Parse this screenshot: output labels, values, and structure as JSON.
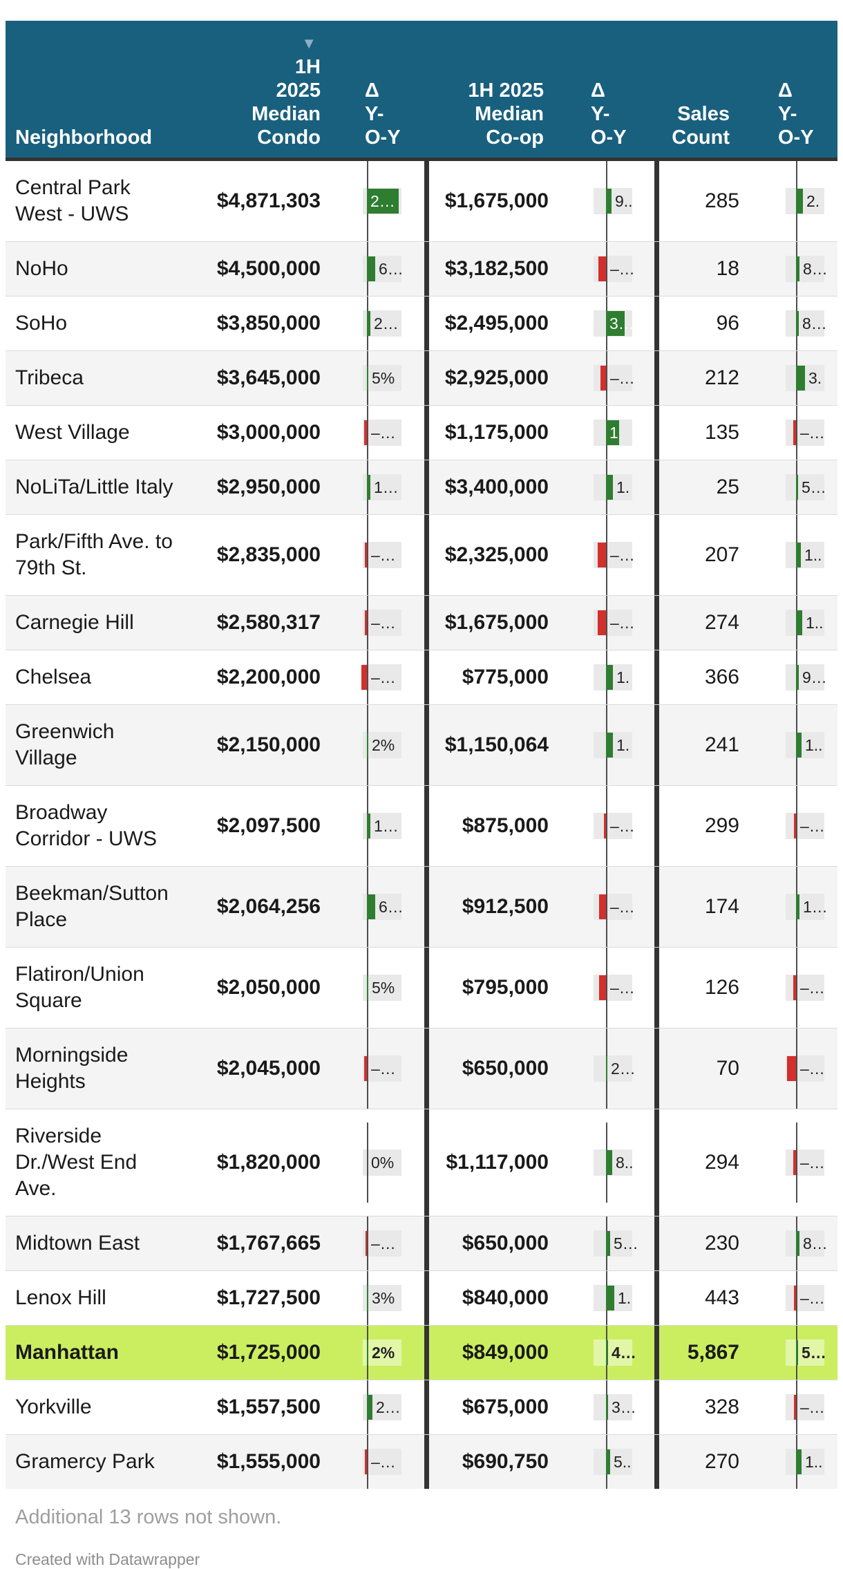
{
  "colors": {
    "header_bg": "#19607E",
    "divider": "#333333",
    "alt_row": "#F4F4F4",
    "highlight": "#CBEE61",
    "positive": "#2E7D30",
    "negative": "#D2302C",
    "label_box": "#E9E9E9",
    "footer_text": "#9E9E9E"
  },
  "header": {
    "sort_arrow": "▼",
    "columns": [
      {
        "id": "name",
        "label": "Neighborhood",
        "lines": [
          "Neighborhood"
        ],
        "sorted": false
      },
      {
        "id": "condo",
        "label": "1H 2025 Median Condo",
        "lines": [
          "1H",
          "2025",
          "Median",
          "Condo"
        ],
        "sorted": true
      },
      {
        "id": "dc",
        "label": "Δ Y-O-Y",
        "lines": [
          "Δ",
          "Y-",
          "O-Y"
        ],
        "sorted": false
      },
      {
        "id": "coop",
        "label": "1H 2025 Median Co-op",
        "lines": [
          "1H 2025",
          "Median",
          "Co-op"
        ],
        "sorted": false
      },
      {
        "id": "dp",
        "label": "Δ Y-O-Y",
        "lines": [
          "Δ",
          "Y-",
          "O-Y"
        ],
        "sorted": false
      },
      {
        "id": "sales",
        "label": "Sales Count",
        "lines": [
          "Sales",
          "Count"
        ],
        "sorted": false
      },
      {
        "id": "ds",
        "label": "Δ Y-O-Y",
        "lines": [
          "Δ",
          "Y-",
          "O-Y"
        ],
        "sorted": false
      }
    ]
  },
  "chart_data": {
    "type": "table",
    "title": "",
    "sorted_by": "1H 2025 Median Condo (descending)",
    "columns": [
      "Neighborhood",
      "1H 2025 Median Condo",
      "Δ Y-O-Y",
      "1H 2025 Median Co-op",
      "Δ Y-O-Y",
      "Sales Count",
      "Δ Y-O-Y"
    ],
    "rows": [
      {
        "name": "Central Park West - UWS",
        "condo": "$4,871,303",
        "dc": {
          "label": "2…",
          "dir": "pos",
          "bar": 46,
          "in_bar": true
        },
        "coop": "$1,675,000",
        "dp": {
          "label": "9..",
          "dir": "pos",
          "bar": 8
        },
        "sales": "285",
        "ds": {
          "label": "2.",
          "dir": "pos",
          "bar": 10
        },
        "highlight": false
      },
      {
        "name": "NoHo",
        "condo": "$4,500,000",
        "dc": {
          "label": "6…",
          "dir": "pos",
          "bar": 12
        },
        "coop": "$3,182,500",
        "dp": {
          "label": "–…",
          "dir": "neg",
          "bar": 11
        },
        "sales": "18",
        "ds": {
          "label": "8…",
          "dir": "pos",
          "bar": 5
        },
        "highlight": false
      },
      {
        "name": "SoHo",
        "condo": "$3,850,000",
        "dc": {
          "label": "2…",
          "dir": "pos",
          "bar": 5
        },
        "coop": "$2,495,000",
        "dp": {
          "label": "3…",
          "dir": "pos",
          "bar": 27,
          "in_bar": true
        },
        "sales": "96",
        "ds": {
          "label": "8…",
          "dir": "pos",
          "bar": 4
        },
        "highlight": false
      },
      {
        "name": "Tribeca",
        "condo": "$3,645,000",
        "dc": {
          "label": "5%",
          "dir": "pos",
          "bar": 2
        },
        "coop": "$2,925,000",
        "dp": {
          "label": "–…",
          "dir": "neg",
          "bar": 8
        },
        "sales": "212",
        "ds": {
          "label": "3.",
          "dir": "pos",
          "bar": 13
        },
        "highlight": false
      },
      {
        "name": "West Village",
        "condo": "$3,000,000",
        "dc": {
          "label": "–…",
          "dir": "neg",
          "bar": 4
        },
        "coop": "$1,175,000",
        "dp": {
          "label": "1",
          "dir": "pos",
          "bar": 19,
          "in_bar": true
        },
        "sales": "135",
        "ds": {
          "label": "–…",
          "dir": "neg",
          "bar": 4
        },
        "highlight": false
      },
      {
        "name": "NoLiTa/Little Italy",
        "condo": "$2,950,000",
        "dc": {
          "label": "1…",
          "dir": "pos",
          "bar": 5
        },
        "coop": "$3,400,000",
        "dp": {
          "label": "1.",
          "dir": "pos",
          "bar": 10
        },
        "sales": "25",
        "ds": {
          "label": "5…",
          "dir": "pos",
          "bar": 3
        },
        "highlight": false
      },
      {
        "name": "Park/Fifth Ave. to 79th St.",
        "condo": "$2,835,000",
        "dc": {
          "label": "–…",
          "dir": "neg",
          "bar": 3
        },
        "coop": "$2,325,000",
        "dp": {
          "label": "–…",
          "dir": "neg",
          "bar": 12
        },
        "sales": "207",
        "ds": {
          "label": "1..",
          "dir": "pos",
          "bar": 7
        },
        "highlight": false
      },
      {
        "name": "Carnegie Hill",
        "condo": "$2,580,317",
        "dc": {
          "label": "–…",
          "dir": "neg",
          "bar": 3
        },
        "coop": "$1,675,000",
        "dp": {
          "label": "–…",
          "dir": "neg",
          "bar": 12
        },
        "sales": "274",
        "ds": {
          "label": "1..",
          "dir": "pos",
          "bar": 9
        },
        "highlight": false
      },
      {
        "name": "Chelsea",
        "condo": "$2,200,000",
        "dc": {
          "label": "–…",
          "dir": "neg",
          "bar": 8
        },
        "coop": "$775,000",
        "dp": {
          "label": "1.",
          "dir": "pos",
          "bar": 10
        },
        "sales": "366",
        "ds": {
          "label": "9…",
          "dir": "pos",
          "bar": 4
        },
        "highlight": false
      },
      {
        "name": "Greenwich Village",
        "condo": "$2,150,000",
        "dc": {
          "label": "2%",
          "dir": "pos",
          "bar": 2
        },
        "coop": "$1,150,064",
        "dp": {
          "label": "1.",
          "dir": "pos",
          "bar": 10
        },
        "sales": "241",
        "ds": {
          "label": "1..",
          "dir": "pos",
          "bar": 8
        },
        "highlight": false
      },
      {
        "name": "Broadway Corridor - UWS",
        "condo": "$2,097,500",
        "dc": {
          "label": "1…",
          "dir": "pos",
          "bar": 5
        },
        "coop": "$875,000",
        "dp": {
          "label": "–…",
          "dir": "neg",
          "bar": 3
        },
        "sales": "299",
        "ds": {
          "label": "–…",
          "dir": "neg",
          "bar": 3
        },
        "highlight": false
      },
      {
        "name": "Beekman/Sutton Place",
        "condo": "$2,064,256",
        "dc": {
          "label": "6…",
          "dir": "pos",
          "bar": 12
        },
        "coop": "$912,500",
        "dp": {
          "label": "–…",
          "dir": "neg",
          "bar": 10
        },
        "sales": "174",
        "ds": {
          "label": "1…",
          "dir": "pos",
          "bar": 5
        },
        "highlight": false
      },
      {
        "name": "Flatiron/Union Square",
        "condo": "$2,050,000",
        "dc": {
          "label": "5%",
          "dir": "pos",
          "bar": 2
        },
        "coop": "$795,000",
        "dp": {
          "label": "–…",
          "dir": "neg",
          "bar": 10
        },
        "sales": "126",
        "ds": {
          "label": "–…",
          "dir": "neg",
          "bar": 4
        },
        "highlight": false
      },
      {
        "name": "Morningside Heights",
        "condo": "$2,045,000",
        "dc": {
          "label": "–…",
          "dir": "neg",
          "bar": 4
        },
        "coop": "$650,000",
        "dp": {
          "label": "2…",
          "dir": "pos",
          "bar": 2
        },
        "sales": "70",
        "ds": {
          "label": "–…",
          "dir": "neg",
          "bar": 13
        },
        "highlight": false
      },
      {
        "name": "Riverside Dr./West End Ave.",
        "condo": "$1,820,000",
        "dc": {
          "label": "0%",
          "dir": "zero",
          "bar": 0
        },
        "coop": "$1,117,000",
        "dp": {
          "label": "8..",
          "dir": "pos",
          "bar": 9
        },
        "sales": "294",
        "ds": {
          "label": "–…",
          "dir": "neg",
          "bar": 4
        },
        "highlight": false
      },
      {
        "name": "Midtown East",
        "condo": "$1,767,665",
        "dc": {
          "label": "–…",
          "dir": "neg",
          "bar": 2
        },
        "coop": "$650,000",
        "dp": {
          "label": "5…",
          "dir": "pos",
          "bar": 6
        },
        "sales": "230",
        "ds": {
          "label": "8…",
          "dir": "pos",
          "bar": 5
        },
        "highlight": false
      },
      {
        "name": "Lenox Hill",
        "condo": "$1,727,500",
        "dc": {
          "label": "3%",
          "dir": "pos",
          "bar": 2
        },
        "coop": "$840,000",
        "dp": {
          "label": "1.",
          "dir": "pos",
          "bar": 12
        },
        "sales": "443",
        "ds": {
          "label": "–…",
          "dir": "neg",
          "bar": 3
        },
        "highlight": false
      },
      {
        "name": "Manhattan",
        "condo": "$1,725,000",
        "dc": {
          "label": "2%",
          "dir": "pos",
          "bar": 2
        },
        "coop": "$849,000",
        "dp": {
          "label": "4…",
          "dir": "pos",
          "bar": 3
        },
        "sales": "5,867",
        "ds": {
          "label": "5…",
          "dir": "pos",
          "bar": 3
        },
        "highlight": true
      },
      {
        "name": "Yorkville",
        "condo": "$1,557,500",
        "dc": {
          "label": "2…",
          "dir": "pos",
          "bar": 8
        },
        "coop": "$675,000",
        "dp": {
          "label": "3…",
          "dir": "pos",
          "bar": 3
        },
        "sales": "328",
        "ds": {
          "label": "–…",
          "dir": "neg",
          "bar": 3
        },
        "highlight": false
      },
      {
        "name": "Gramercy Park",
        "condo": "$1,555,000",
        "dc": {
          "label": "–…",
          "dir": "neg",
          "bar": 3
        },
        "coop": "$690,750",
        "dp": {
          "label": "5..",
          "dir": "pos",
          "bar": 6
        },
        "sales": "270",
        "ds": {
          "label": "1..",
          "dir": "pos",
          "bar": 8
        },
        "highlight": false
      }
    ]
  },
  "footer": {
    "note": "Additional 13 rows not shown.",
    "credit": "Created with Datawrapper"
  }
}
